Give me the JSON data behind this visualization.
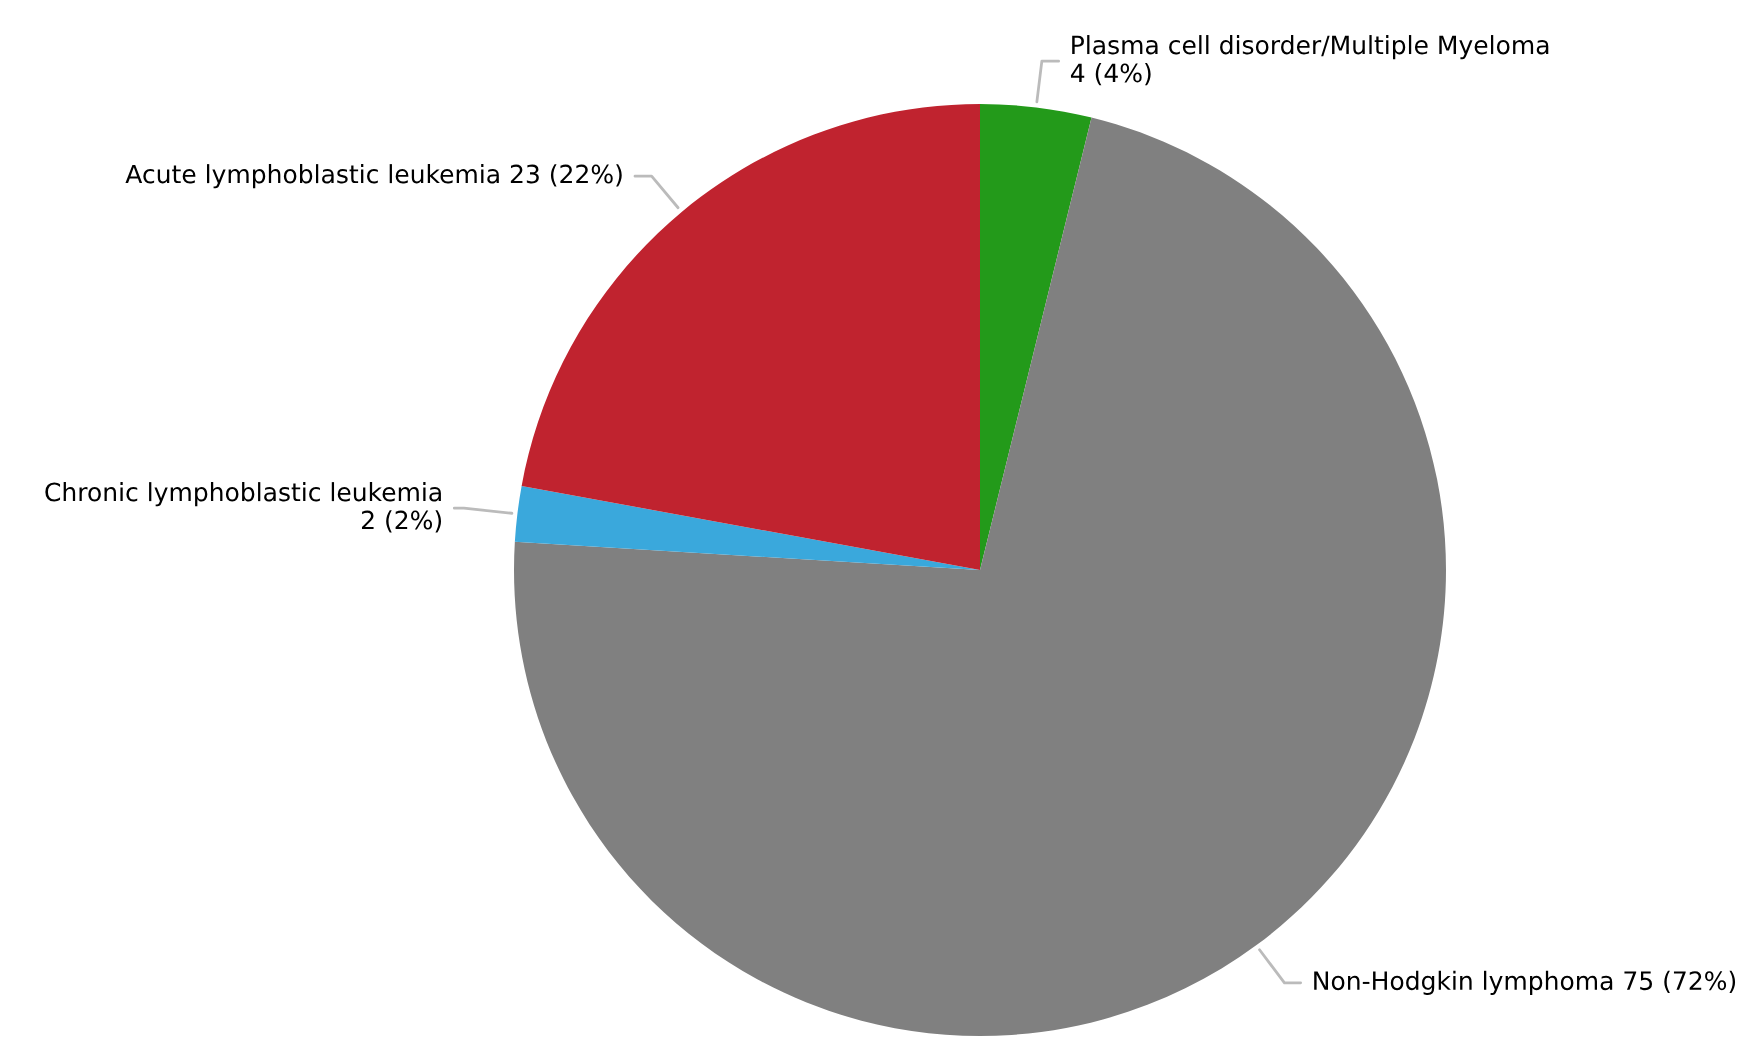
{
  "chart_data": {
    "type": "pie",
    "categories": [
      "Plasma cell disorder/Multiple Myeloma",
      "Non-Hodgkin lymphoma",
      "Chronic lymphoblastic leukemia",
      "Acute lymphoblastic leukemia"
    ],
    "values": [
      4,
      75,
      2,
      23
    ],
    "value_labels": [
      "4 (4%)",
      "75 (72%)",
      "2 (2%)",
      "23 (22%)"
    ],
    "colors": [
      "#239a1a",
      "#808080",
      "#3aa8dc",
      "#c0232f"
    ]
  }
}
